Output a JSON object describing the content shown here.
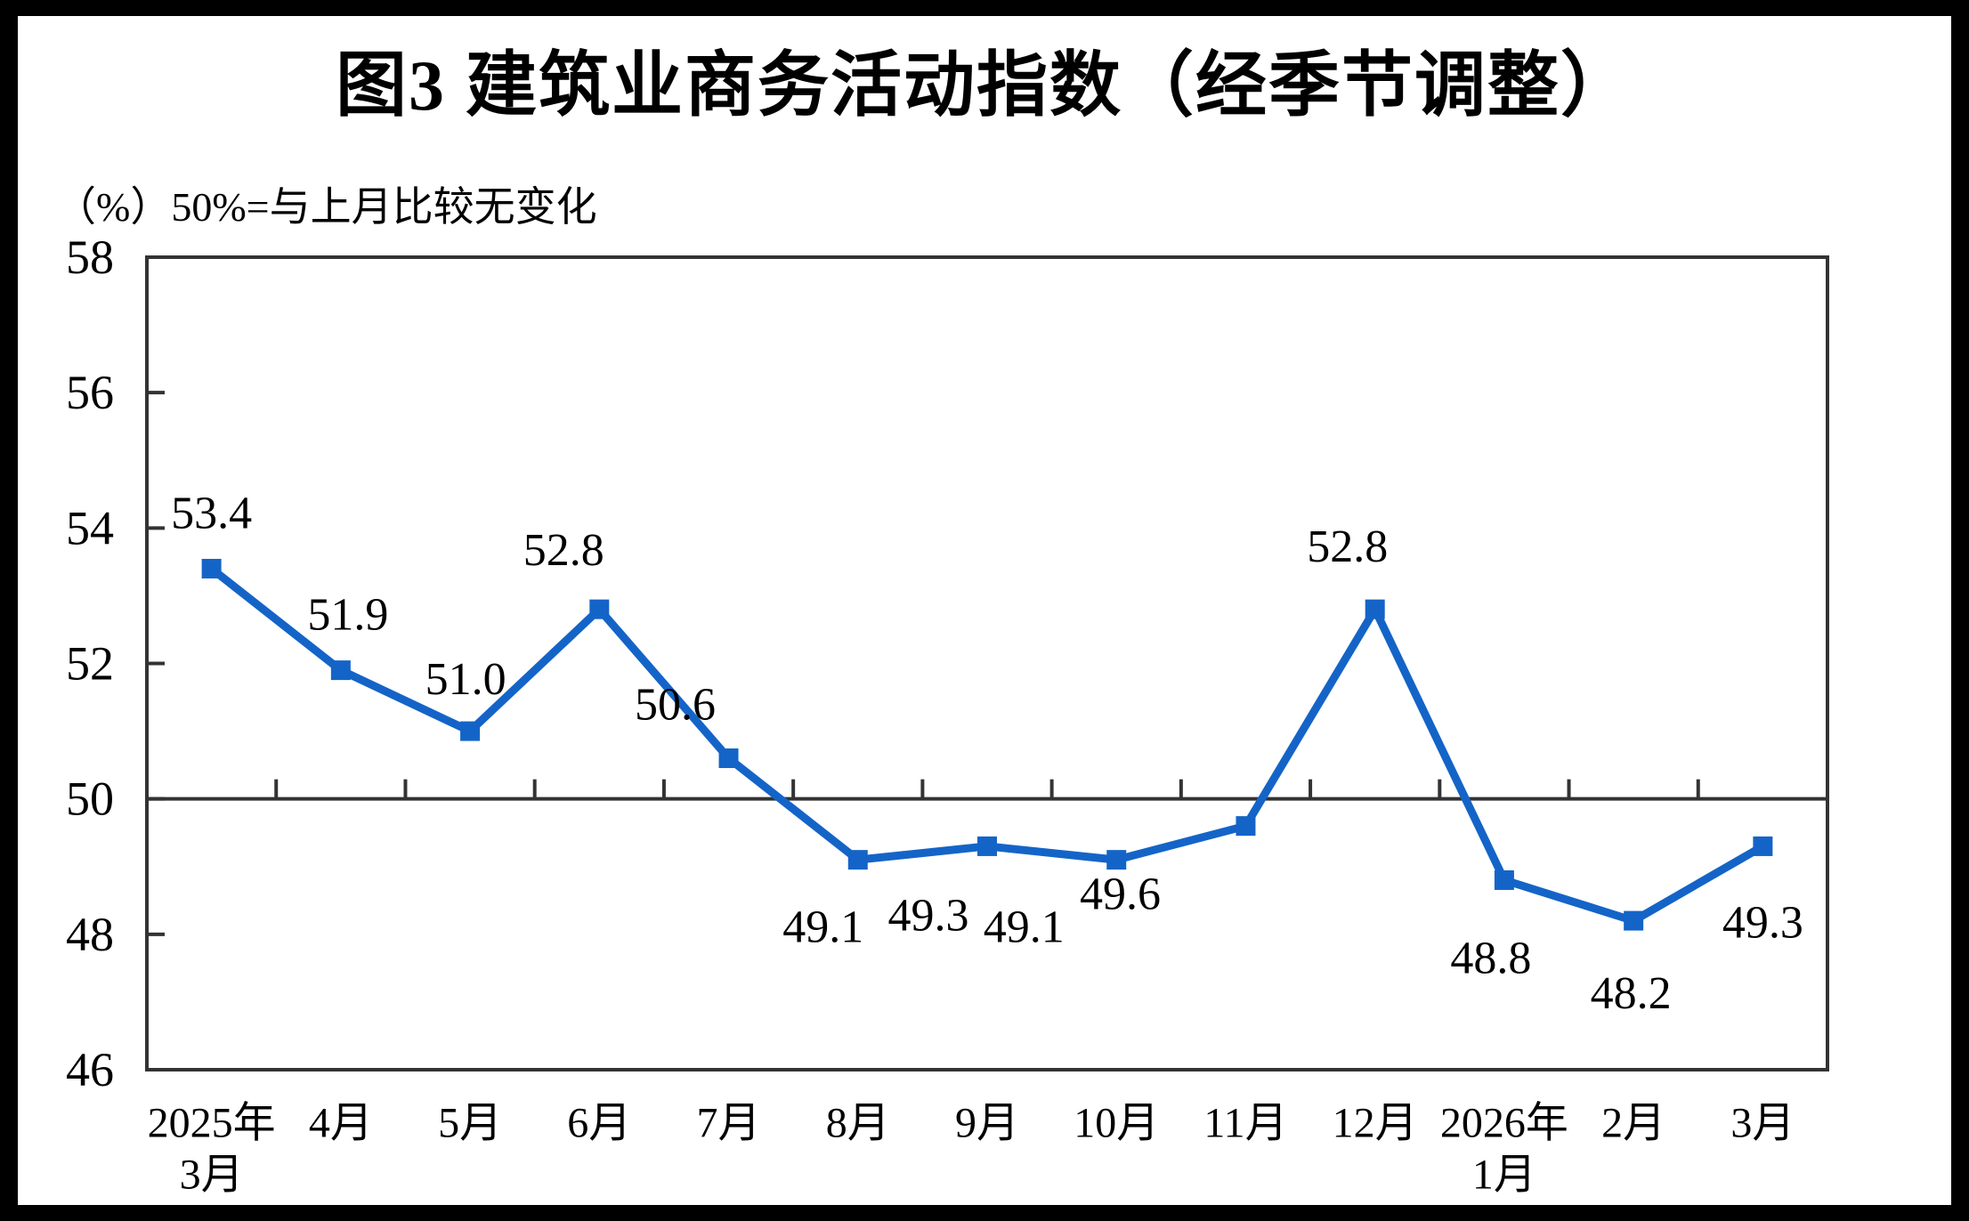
{
  "figure": {
    "title": "图3  建筑业商务活动指数（经季节调整）",
    "unit_note": "（%）50%=与上月比较无变化"
  },
  "chart_data": {
    "type": "line",
    "title": "图3  建筑业商务活动指数（经季节调整）",
    "subtitle": "（%）50%=与上月比较无变化",
    "series_name": "建筑业商务活动指数",
    "categories": [
      "2025年\n3月",
      "4月",
      "5月",
      "6月",
      "7月",
      "8月",
      "9月",
      "10月",
      "11月",
      "12月",
      "2026年\n1月",
      "2月",
      "3月"
    ],
    "values": [
      53.4,
      51.9,
      51.0,
      52.8,
      50.6,
      49.1,
      49.3,
      49.1,
      49.6,
      52.8,
      48.8,
      48.2,
      49.3
    ],
    "data_labels": [
      "53.4",
      "51.9",
      "51.0",
      "52.8",
      "50.6",
      "49.1",
      "49.3",
      "49.1",
      "49.6",
      "52.8",
      "48.8",
      "48.2",
      "49.3"
    ],
    "ylim": [
      46,
      58
    ],
    "y_ticks": [
      46,
      48,
      50,
      52,
      54,
      56,
      58
    ],
    "reference_line": 50,
    "grid": false,
    "legend_position": "none",
    "marker": "square",
    "colors": {
      "line": "#1464C8",
      "marker": "#1464C8",
      "axis": "#333333",
      "text": "#000000",
      "background": "#ffffff",
      "outer_border": "#000000"
    }
  }
}
